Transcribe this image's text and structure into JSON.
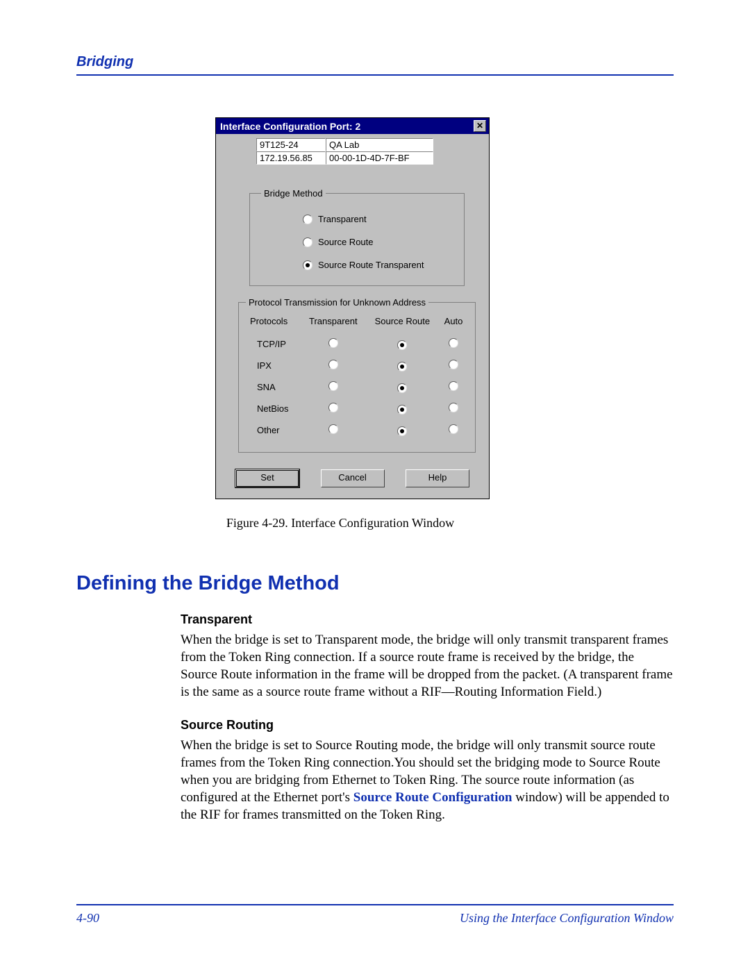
{
  "header": {
    "section": "Bridging"
  },
  "dialog": {
    "title": "Interface Configuration Port: 2",
    "close_glyph": "✕",
    "info": {
      "device": "9T125-24",
      "location": "QA Lab",
      "ip": "172.19.56.85",
      "mac": "00-00-1D-4D-7F-BF"
    },
    "bridge_method": {
      "legend": "Bridge Method",
      "options": [
        {
          "label": "Transparent",
          "selected": false
        },
        {
          "label": "Source Route",
          "selected": false
        },
        {
          "label": "Source Route Transparent",
          "selected": true
        }
      ]
    },
    "protocol_table": {
      "legend": "Protocol Transmission for Unknown Address",
      "headers": [
        "Protocols",
        "Transparent",
        "Source Route",
        "Auto"
      ],
      "rows": [
        {
          "name": "TCP/IP",
          "sel": 1
        },
        {
          "name": "IPX",
          "sel": 1
        },
        {
          "name": "SNA",
          "sel": 1
        },
        {
          "name": "NetBios",
          "sel": 1
        },
        {
          "name": "Other",
          "sel": 1
        }
      ]
    },
    "buttons": {
      "set": "Set",
      "cancel": "Cancel",
      "help": "Help"
    }
  },
  "figure_caption": "Figure 4-29. Interface Configuration Window",
  "section_heading": "Defining the Bridge Method",
  "transparent": {
    "head": "Transparent",
    "body": "When the bridge is set to Transparent mode, the bridge will only transmit transparent frames from the Token Ring connection. If a source route frame is received by the bridge, the Source Route information in the frame will be dropped from the packet. (A transparent frame is the same as a source route frame without a RIF—Routing Information Field.)"
  },
  "source_routing": {
    "head": "Source Routing",
    "body_pre": "When the bridge is set to Source Routing mode, the bridge will only transmit source route frames from the Token Ring connection.You should set the bridging mode to Source Route when you are bridging from Ethernet to Token Ring. The source route information (as configured at the Ethernet port's ",
    "link": "Source Route Configuration",
    "body_post": " window) will be appended to the RIF for frames transmitted on the Token Ring."
  },
  "footer": {
    "page": "4-90",
    "context": "Using the Interface Configuration Window"
  },
  "colors": {
    "brand_blue": "#1030b0",
    "win_gray": "#c0c0c0",
    "titlebar_blue": "#000080"
  }
}
